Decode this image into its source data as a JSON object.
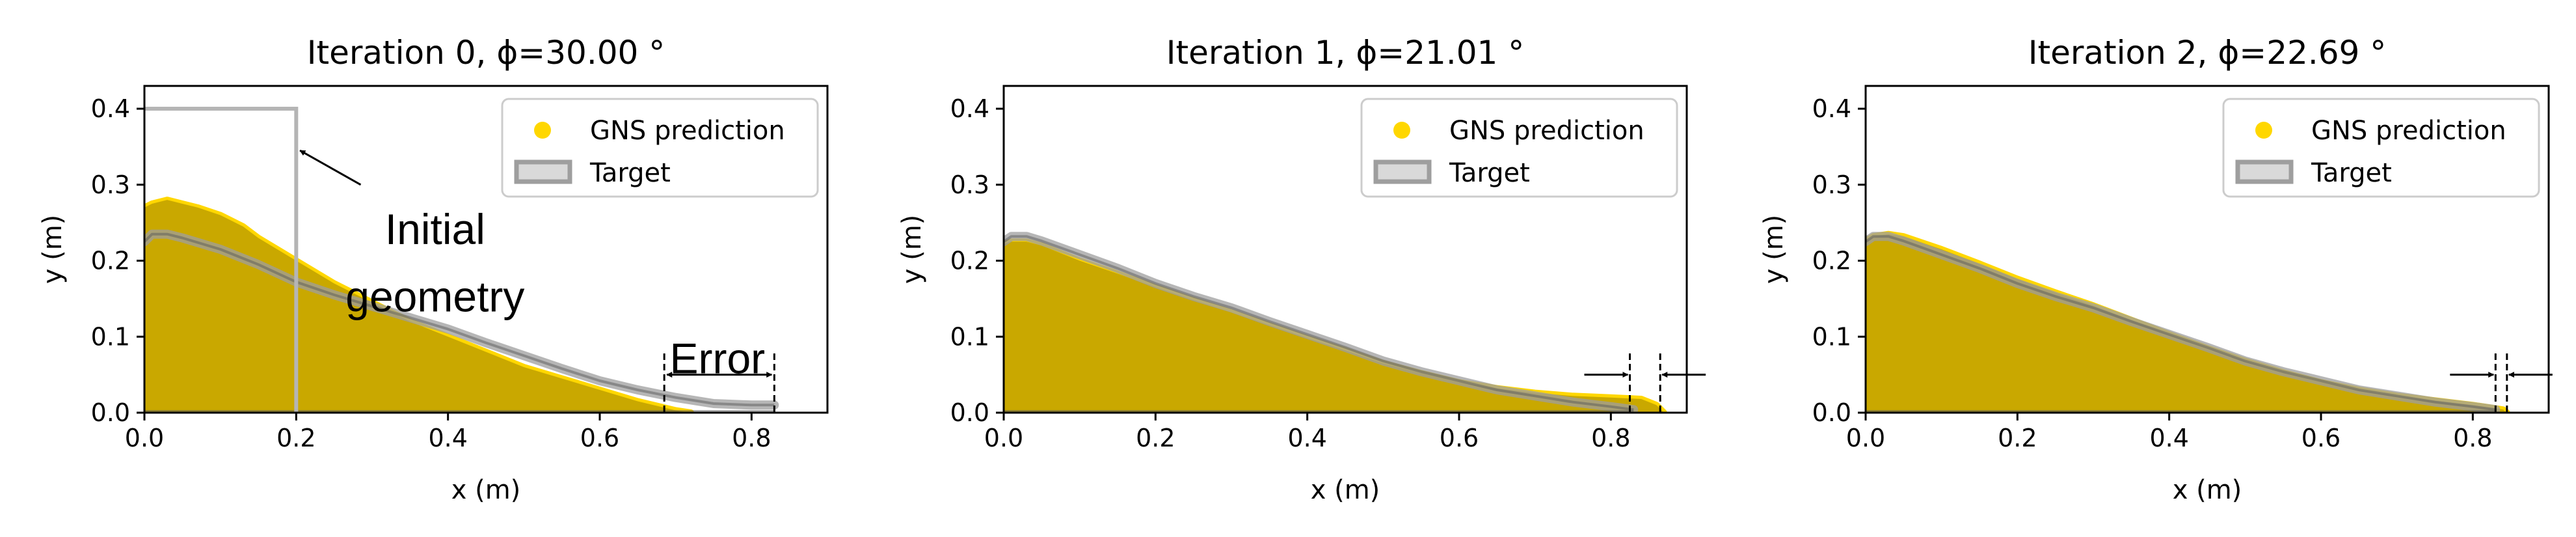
{
  "chart_data": [
    {
      "type": "area",
      "title": "Iteration 0, ϕ=30.00 °",
      "xlabel": "x (m)",
      "ylabel": "y (m)",
      "xlim": [
        0.0,
        0.9
      ],
      "ylim": [
        0.0,
        0.43
      ],
      "xticks": [
        "0.0",
        "0.2",
        "0.4",
        "0.6",
        "0.8"
      ],
      "yticks": [
        "0.0",
        "0.1",
        "0.2",
        "0.3",
        "0.4"
      ],
      "legend": {
        "placement": "top-right",
        "entries": [
          "GNS prediction",
          "Target"
        ]
      },
      "series": [
        {
          "name": "GNS prediction",
          "x": [
            0.0,
            0.01,
            0.03,
            0.05,
            0.07,
            0.1,
            0.13,
            0.15,
            0.2,
            0.25,
            0.3,
            0.35,
            0.4,
            0.45,
            0.5,
            0.55,
            0.6,
            0.65,
            0.7,
            0.72
          ],
          "y": [
            0.27,
            0.275,
            0.28,
            0.275,
            0.27,
            0.26,
            0.245,
            0.23,
            0.2,
            0.17,
            0.145,
            0.12,
            0.1,
            0.08,
            0.06,
            0.045,
            0.03,
            0.015,
            0.003,
            0.0
          ]
        },
        {
          "name": "Target",
          "x": [
            0.0,
            0.01,
            0.03,
            0.05,
            0.1,
            0.15,
            0.2,
            0.25,
            0.3,
            0.35,
            0.4,
            0.45,
            0.5,
            0.55,
            0.6,
            0.65,
            0.7,
            0.75,
            0.8,
            0.83
          ],
          "y": [
            0.225,
            0.235,
            0.235,
            0.23,
            0.215,
            0.195,
            0.172,
            0.155,
            0.14,
            0.125,
            0.11,
            0.092,
            0.075,
            0.058,
            0.042,
            0.03,
            0.02,
            0.012,
            0.01,
            0.01
          ]
        }
      ],
      "initial_geometry": {
        "x": [
          0.0,
          0.2
        ],
        "y": [
          0.0,
          0.4
        ]
      },
      "error_marker": {
        "x": [
          0.685,
          0.83
        ]
      },
      "annotations": [
        "Initial",
        "geometry",
        "Error"
      ]
    },
    {
      "type": "area",
      "title": "Iteration 1, ϕ=21.01 °",
      "xlabel": "x (m)",
      "ylabel": "y (m)",
      "xlim": [
        0.0,
        0.9
      ],
      "ylim": [
        0.0,
        0.43
      ],
      "xticks": [
        "0.0",
        "0.2",
        "0.4",
        "0.6",
        "0.8"
      ],
      "yticks": [
        "0.0",
        "0.1",
        "0.2",
        "0.3",
        "0.4"
      ],
      "legend": {
        "placement": "top-right",
        "entries": [
          "GNS prediction",
          "Target"
        ]
      },
      "series": [
        {
          "name": "GNS prediction",
          "x": [
            0.0,
            0.01,
            0.03,
            0.05,
            0.1,
            0.15,
            0.2,
            0.25,
            0.3,
            0.35,
            0.4,
            0.45,
            0.5,
            0.55,
            0.6,
            0.65,
            0.7,
            0.75,
            0.8,
            0.84,
            0.86,
            0.87
          ],
          "y": [
            0.222,
            0.225,
            0.225,
            0.22,
            0.2,
            0.183,
            0.165,
            0.148,
            0.132,
            0.115,
            0.098,
            0.082,
            0.065,
            0.052,
            0.04,
            0.032,
            0.026,
            0.022,
            0.02,
            0.018,
            0.01,
            0.0
          ]
        },
        {
          "name": "Target",
          "x": [
            0.0,
            0.01,
            0.03,
            0.05,
            0.1,
            0.15,
            0.2,
            0.25,
            0.3,
            0.35,
            0.4,
            0.45,
            0.5,
            0.55,
            0.6,
            0.65,
            0.7,
            0.75,
            0.8,
            0.83
          ],
          "y": [
            0.225,
            0.232,
            0.232,
            0.226,
            0.208,
            0.19,
            0.17,
            0.153,
            0.138,
            0.12,
            0.103,
            0.086,
            0.068,
            0.054,
            0.042,
            0.03,
            0.022,
            0.014,
            0.008,
            0.004
          ]
        }
      ],
      "error_marker": {
        "x": [
          0.825,
          0.865
        ]
      }
    },
    {
      "type": "area",
      "title": "Iteration 2, ϕ=22.69 °",
      "xlabel": "x (m)",
      "ylabel": "y (m)",
      "xlim": [
        0.0,
        0.9
      ],
      "ylim": [
        0.0,
        0.43
      ],
      "xticks": [
        "0.0",
        "0.2",
        "0.4",
        "0.6",
        "0.8"
      ],
      "yticks": [
        "0.0",
        "0.1",
        "0.2",
        "0.3",
        "0.4"
      ],
      "legend": {
        "placement": "top-right",
        "entries": [
          "GNS prediction",
          "Target"
        ]
      },
      "series": [
        {
          "name": "GNS prediction",
          "x": [
            0.0,
            0.01,
            0.03,
            0.05,
            0.1,
            0.15,
            0.2,
            0.25,
            0.3,
            0.35,
            0.4,
            0.45,
            0.5,
            0.55,
            0.6,
            0.65,
            0.7,
            0.75,
            0.8,
            0.84,
            0.845
          ],
          "y": [
            0.226,
            0.232,
            0.235,
            0.232,
            0.215,
            0.196,
            0.176,
            0.158,
            0.141,
            0.122,
            0.103,
            0.085,
            0.068,
            0.053,
            0.04,
            0.03,
            0.022,
            0.016,
            0.01,
            0.004,
            0.0
          ]
        },
        {
          "name": "Target",
          "x": [
            0.0,
            0.01,
            0.03,
            0.05,
            0.1,
            0.15,
            0.2,
            0.25,
            0.3,
            0.35,
            0.4,
            0.45,
            0.5,
            0.55,
            0.6,
            0.65,
            0.7,
            0.75,
            0.8,
            0.83
          ],
          "y": [
            0.225,
            0.232,
            0.232,
            0.226,
            0.208,
            0.19,
            0.17,
            0.153,
            0.138,
            0.12,
            0.103,
            0.086,
            0.068,
            0.054,
            0.042,
            0.03,
            0.022,
            0.014,
            0.008,
            0.004
          ]
        }
      ],
      "error_marker": {
        "x": [
          0.83,
          0.845
        ]
      }
    }
  ],
  "colors": {
    "prediction": "#c9a800",
    "prediction_top": "#ffd700",
    "target": "#9e9e9e",
    "target_dark": "#5a5a5a",
    "initial_geometry": "#b5b5b5",
    "legend_edge": "#cccccc"
  }
}
